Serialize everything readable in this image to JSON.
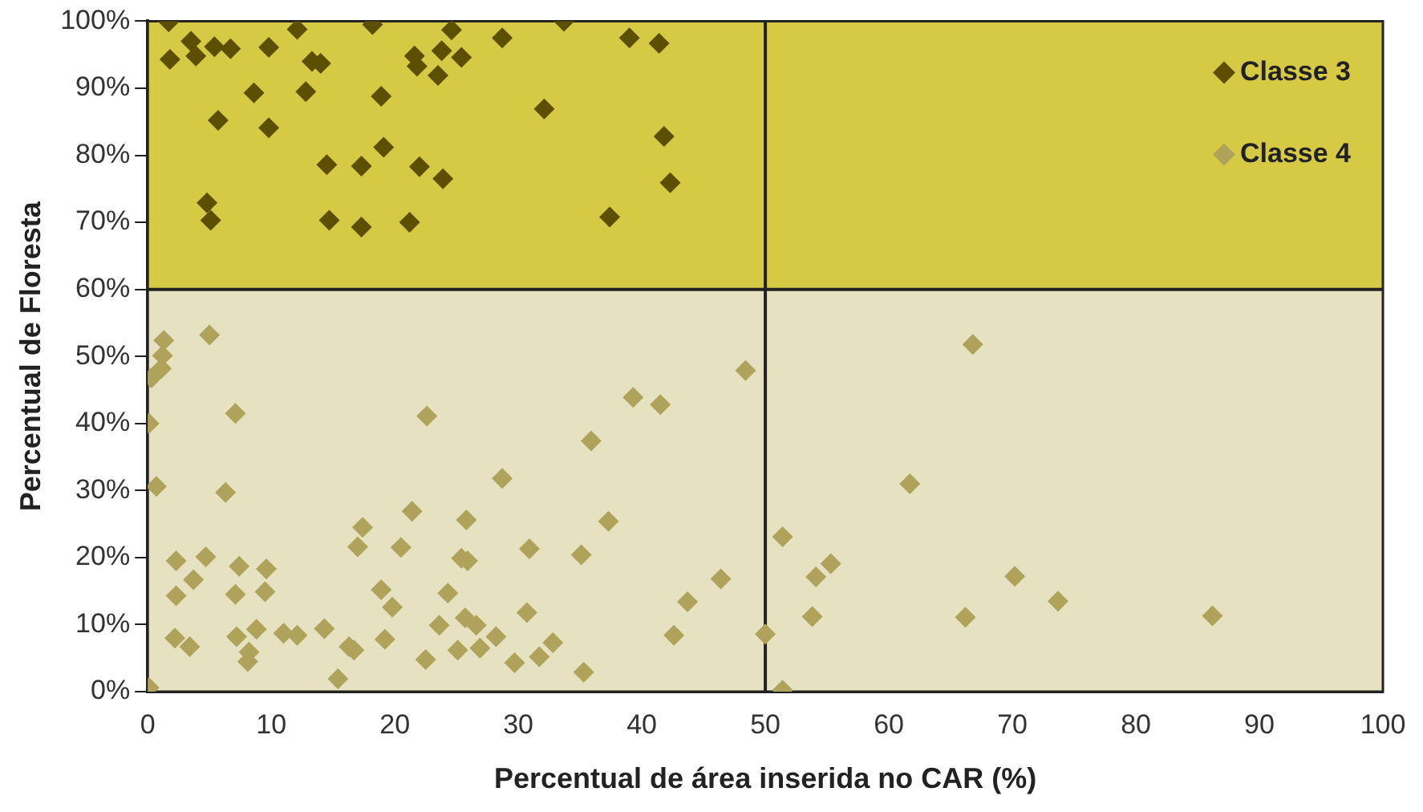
{
  "chart_data": {
    "type": "scatter",
    "xlabel": "Percentual de área inserida no CAR (%)",
    "ylabel": "Percentual de Floresta",
    "xlim": [
      0,
      100
    ],
    "xticks": [
      0,
      10,
      20,
      30,
      40,
      50,
      60,
      70,
      80,
      90,
      100
    ],
    "ylim": [
      0,
      100
    ],
    "yticks": [
      {
        "value": 0,
        "label": "0%"
      },
      {
        "value": 10,
        "label": "10%"
      },
      {
        "value": 20,
        "label": "20%"
      },
      {
        "value": 30,
        "label": "30%"
      },
      {
        "value": 40,
        "label": "40%"
      },
      {
        "value": 50,
        "label": "50%"
      },
      {
        "value": 60,
        "label": "60%"
      },
      {
        "value": 70,
        "label": "70%"
      },
      {
        "value": 80,
        "label": "80%"
      },
      {
        "value": 90,
        "label": "90%"
      },
      {
        "value": 100,
        "label": "100%"
      }
    ],
    "grid": false,
    "legend": "top right",
    "marker": "diamond",
    "bands": [
      {
        "axis": "y",
        "from": 60,
        "to": 100,
        "color": "#d6c944"
      },
      {
        "axis": "y",
        "from": 0,
        "to": 60,
        "color": "#e6e1c1"
      }
    ],
    "ref_lines": [
      {
        "axis": "x",
        "value": 50,
        "color": "#222222"
      },
      {
        "axis": "y",
        "value": 60,
        "color": "#222222"
      }
    ],
    "series": [
      {
        "name": "Classe 3",
        "color": "#5c4f00",
        "x": [
          1.7,
          3.5,
          1.8,
          3.9,
          5.4,
          6.7,
          9.8,
          12.1,
          13.3,
          14.0,
          18.2,
          24.6,
          21.6,
          21.8,
          23.8,
          25.4,
          23.5,
          28.7,
          33.7,
          39.0,
          41.4,
          8.6,
          12.8,
          18.9,
          32.1,
          5.7,
          9.8,
          41.8,
          19.1,
          14.5,
          17.3,
          22.0,
          23.9,
          42.3,
          4.8,
          5.1,
          14.7,
          17.3,
          21.2,
          37.4
        ],
        "values": [
          99.9,
          97.0,
          94.3,
          94.8,
          96.2,
          95.9,
          96.1,
          98.8,
          94.0,
          93.7,
          99.5,
          98.7,
          94.8,
          93.3,
          95.6,
          94.6,
          91.9,
          97.5,
          100,
          97.5,
          96.7,
          89.3,
          89.5,
          88.8,
          86.9,
          85.2,
          84.1,
          82.8,
          81.2,
          78.6,
          78.4,
          78.3,
          76.5,
          75.9,
          72.9,
          70.3,
          70.3,
          69.3,
          70.0,
          70.8
        ]
      },
      {
        "name": "Classe 4",
        "color": "#afa25a",
        "x": [
          1.3,
          1.2,
          1.1,
          0.3,
          5.0,
          0.1,
          7.1,
          22.6,
          48.4,
          39.3,
          41.5,
          35.9,
          0.7,
          6.3,
          28.7,
          21.4,
          17.4,
          25.8,
          37.3,
          17.0,
          20.5,
          30.9,
          35.1,
          25.4,
          25.9,
          2.3,
          4.7,
          7.4,
          9.6,
          3.7,
          2.3,
          7.1,
          9.5,
          18.9,
          19.8,
          24.3,
          46.4,
          43.7,
          30.7,
          25.7,
          26.6,
          23.6,
          28.2,
          19.2,
          14.3,
          11.0,
          12.1,
          8.8,
          7.2,
          2.2,
          3.4,
          8.2,
          8.1,
          16.3,
          16.7,
          22.5,
          25.1,
          26.9,
          29.7,
          31.7,
          32.8,
          42.6,
          35.3,
          15.4,
          0.1,
          50.0,
          51.4,
          54.1,
          55.3,
          53.8,
          51.4,
          66.8,
          61.7,
          70.2,
          73.7,
          66.2,
          86.2
        ],
        "values": [
          52.4,
          50.1,
          48.2,
          46.8,
          53.2,
          40.0,
          41.5,
          41.1,
          47.9,
          43.9,
          42.8,
          37.4,
          30.6,
          29.7,
          31.8,
          26.9,
          24.5,
          25.6,
          25.4,
          21.6,
          21.5,
          21.3,
          20.4,
          19.9,
          19.5,
          19.5,
          20.1,
          18.7,
          18.3,
          16.7,
          14.3,
          14.5,
          14.9,
          15.2,
          12.6,
          14.7,
          16.8,
          13.4,
          11.8,
          11.0,
          9.9,
          9.9,
          8.2,
          7.8,
          9.4,
          8.7,
          8.4,
          9.3,
          8.2,
          8.0,
          6.7,
          5.9,
          4.5,
          6.7,
          6.2,
          4.8,
          6.2,
          6.5,
          4.3,
          5.2,
          7.3,
          8.4,
          2.9,
          1.9,
          0.6,
          8.6,
          23.1,
          17.1,
          19.1,
          11.2,
          0.2,
          51.8,
          31.0,
          17.2,
          13.5,
          11.1,
          11.3
        ]
      }
    ]
  }
}
